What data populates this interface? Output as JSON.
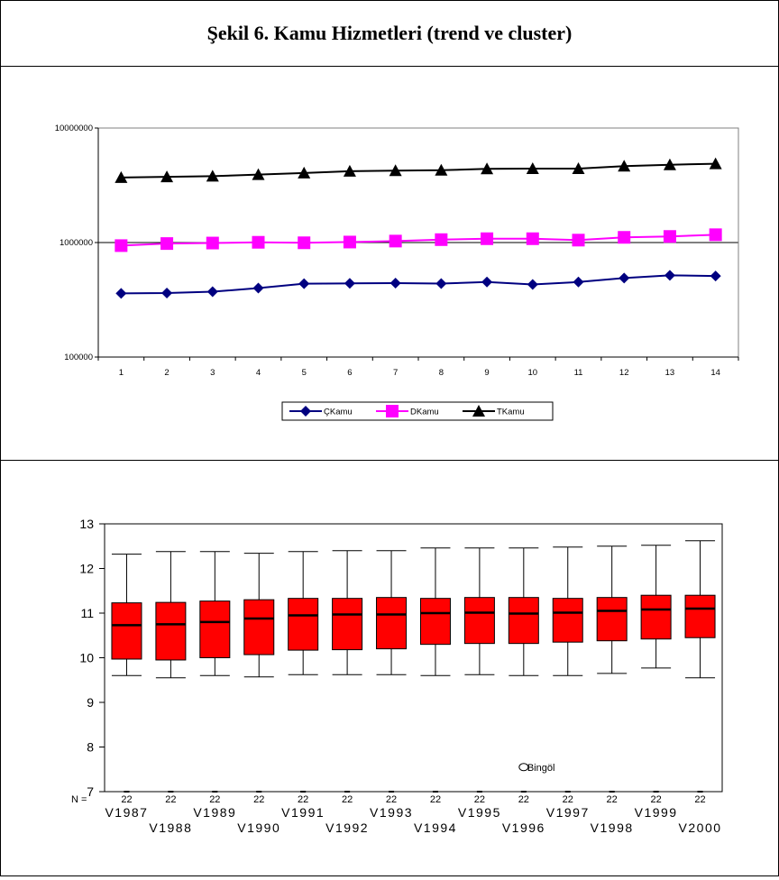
{
  "figure_title": "Şekil 6. Kamu Hizmetleri (trend ve cluster)",
  "chart_data": [
    {
      "type": "line",
      "yscale": "log",
      "ylim": [
        100000,
        10000000
      ],
      "y_tick_labels": [
        "10000000",
        "1000000",
        "100000"
      ],
      "x": [
        1,
        2,
        3,
        4,
        5,
        6,
        7,
        8,
        9,
        10,
        11,
        12,
        13,
        14
      ],
      "x_tick_labels": [
        "1",
        "2",
        "3",
        "4",
        "5",
        "6",
        "7",
        "8",
        "9",
        "10",
        "11",
        "12",
        "13",
        "14"
      ],
      "grid": "horizontal line at 1000000",
      "legend_position": "bottom",
      "series": [
        {
          "name": "ÇKamu",
          "color": "#000080",
          "marker": "diamond",
          "values": [
            360000,
            362000,
            372000,
            400000,
            437000,
            440000,
            442000,
            438000,
            452000,
            430000,
            452000,
            490000,
            517000,
            510000
          ]
        },
        {
          "name": "DKamu",
          "color": "#ff00ff",
          "marker": "square",
          "values": [
            940000,
            980000,
            990000,
            1005000,
            995000,
            1010000,
            1030000,
            1060000,
            1080000,
            1080000,
            1050000,
            1110000,
            1130000,
            1170000
          ]
        },
        {
          "name": "TKamu",
          "color": "#000000",
          "marker": "triangle",
          "values": [
            3700000,
            3750000,
            3800000,
            3920000,
            4050000,
            4200000,
            4250000,
            4280000,
            4400000,
            4420000,
            4420000,
            4650000,
            4780000,
            4880000
          ]
        }
      ]
    },
    {
      "type": "boxplot",
      "ylim": [
        7,
        13
      ],
      "y_tick_labels": [
        "13",
        "12",
        "11",
        "10",
        "9",
        "8",
        "7"
      ],
      "n_label": "N =",
      "box_color": "#ff0000",
      "categories": [
        "V1987",
        "V1988",
        "V1989",
        "V1990",
        "V1991",
        "V1992",
        "V1993",
        "V1994",
        "V1995",
        "V1996",
        "V1997",
        "V1998",
        "V1999",
        "V2000"
      ],
      "n": [
        "22",
        "22",
        "22",
        "22",
        "22",
        "22",
        "22",
        "22",
        "22",
        "22",
        "22",
        "22",
        "22",
        "22"
      ],
      "boxes": [
        {
          "min": 9.6,
          "q1": 9.97,
          "median": 10.73,
          "q3": 11.23,
          "max": 12.32
        },
        {
          "min": 9.55,
          "q1": 9.95,
          "median": 10.75,
          "q3": 11.24,
          "max": 12.38
        },
        {
          "min": 9.6,
          "q1": 10.0,
          "median": 10.8,
          "q3": 11.27,
          "max": 12.38
        },
        {
          "min": 9.57,
          "q1": 10.07,
          "median": 10.88,
          "q3": 11.3,
          "max": 12.34
        },
        {
          "min": 9.62,
          "q1": 10.17,
          "median": 10.95,
          "q3": 11.33,
          "max": 12.38
        },
        {
          "min": 9.62,
          "q1": 10.18,
          "median": 10.97,
          "q3": 11.33,
          "max": 12.4
        },
        {
          "min": 9.62,
          "q1": 10.2,
          "median": 10.97,
          "q3": 11.35,
          "max": 12.4
        },
        {
          "min": 9.6,
          "q1": 10.3,
          "median": 11.0,
          "q3": 11.33,
          "max": 12.46
        },
        {
          "min": 9.62,
          "q1": 10.32,
          "median": 11.01,
          "q3": 11.35,
          "max": 12.46
        },
        {
          "min": 9.6,
          "q1": 10.32,
          "median": 10.99,
          "q3": 11.35,
          "max": 12.46
        },
        {
          "min": 9.6,
          "q1": 10.35,
          "median": 11.01,
          "q3": 11.33,
          "max": 12.48
        },
        {
          "min": 9.65,
          "q1": 10.38,
          "median": 11.05,
          "q3": 11.35,
          "max": 12.5
        },
        {
          "min": 9.77,
          "q1": 10.42,
          "median": 11.08,
          "q3": 11.4,
          "max": 12.52
        },
        {
          "min": 9.55,
          "q1": 10.45,
          "median": 11.1,
          "q3": 11.4,
          "max": 12.62
        }
      ],
      "outlier": {
        "label": "Bingöl",
        "category": "V1996",
        "value": 7.55
      }
    }
  ]
}
